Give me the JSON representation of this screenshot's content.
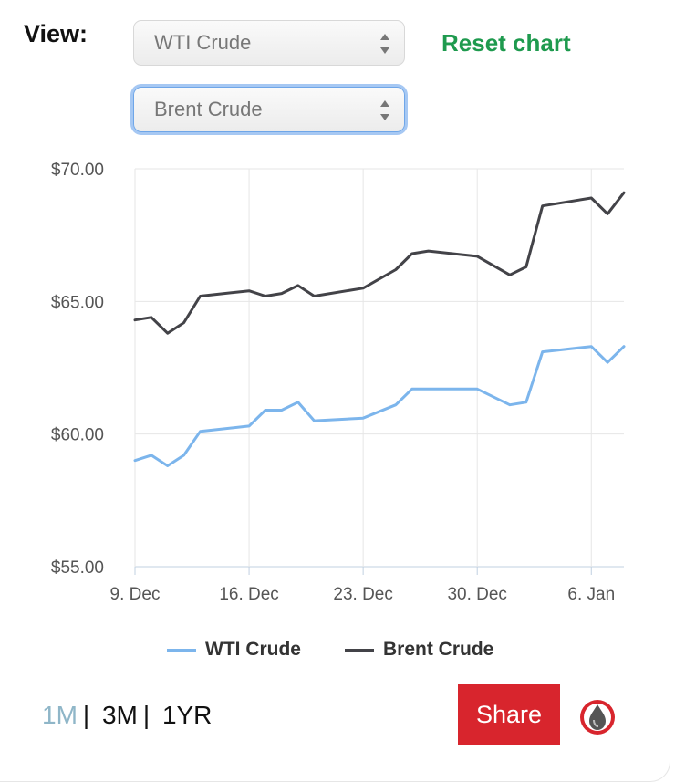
{
  "view_label": "View:",
  "selects": [
    {
      "value": "WTI Crude"
    },
    {
      "value": "Brent Crude"
    }
  ],
  "reset_label": "Reset chart",
  "chart_data": {
    "type": "line",
    "title": "",
    "xlabel": "",
    "ylabel": "",
    "ylim": [
      55,
      70
    ],
    "y_ticks": [
      "$55.00",
      "$60.00",
      "$65.00",
      "$70.00"
    ],
    "y_tick_values": [
      55,
      60,
      65,
      70
    ],
    "x_ticks": [
      "9. Dec",
      "16. Dec",
      "23. Dec",
      "30. Dec",
      "6. Jan"
    ],
    "x_tick_values": [
      0,
      7,
      14,
      21,
      28
    ],
    "xlim": [
      0,
      30
    ],
    "grid": true,
    "legend": "bottom",
    "series": [
      {
        "name": "WTI Crude",
        "color": "#7cb5ec",
        "x": [
          0,
          1,
          2,
          3,
          4,
          7,
          8,
          9,
          10,
          11,
          14,
          16,
          17,
          18,
          21,
          23,
          24,
          25,
          28,
          29,
          30
        ],
        "y": [
          59.0,
          59.2,
          58.8,
          59.2,
          60.1,
          60.3,
          60.9,
          60.9,
          61.2,
          60.5,
          60.6,
          61.1,
          61.7,
          61.7,
          61.7,
          61.1,
          61.2,
          63.1,
          63.3,
          62.7,
          63.3
        ]
      },
      {
        "name": "Brent Crude",
        "color": "#434348",
        "x": [
          0,
          1,
          2,
          3,
          4,
          7,
          8,
          9,
          10,
          11,
          14,
          16,
          17,
          18,
          21,
          23,
          24,
          25,
          28,
          29,
          30
        ],
        "y": [
          64.3,
          64.4,
          63.8,
          64.2,
          65.2,
          65.4,
          65.2,
          65.3,
          65.6,
          65.2,
          65.5,
          66.2,
          66.8,
          66.9,
          66.7,
          66.0,
          66.3,
          68.6,
          68.9,
          68.3,
          69.1
        ]
      }
    ]
  },
  "legend": [
    {
      "label": "WTI Crude",
      "color": "#7cb5ec"
    },
    {
      "label": "Brent Crude",
      "color": "#434348"
    }
  ],
  "ranges": [
    {
      "label": "1M",
      "active": true
    },
    {
      "label": "3M",
      "active": false
    },
    {
      "label": "1YR",
      "active": false
    }
  ],
  "share_label": "Share",
  "logo_icon": "oil-drop-icon"
}
